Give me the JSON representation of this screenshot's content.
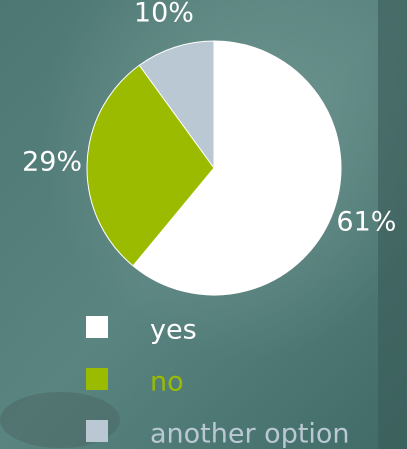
{
  "chart_data": {
    "type": "pie",
    "categories": [
      "yes",
      "no",
      "another option"
    ],
    "values": [
      61,
      29,
      10
    ],
    "value_labels": [
      "61%",
      "29%",
      "10%"
    ],
    "colors": [
      "#ffffff",
      "#9bbb00",
      "#b9c8d3"
    ]
  }
}
